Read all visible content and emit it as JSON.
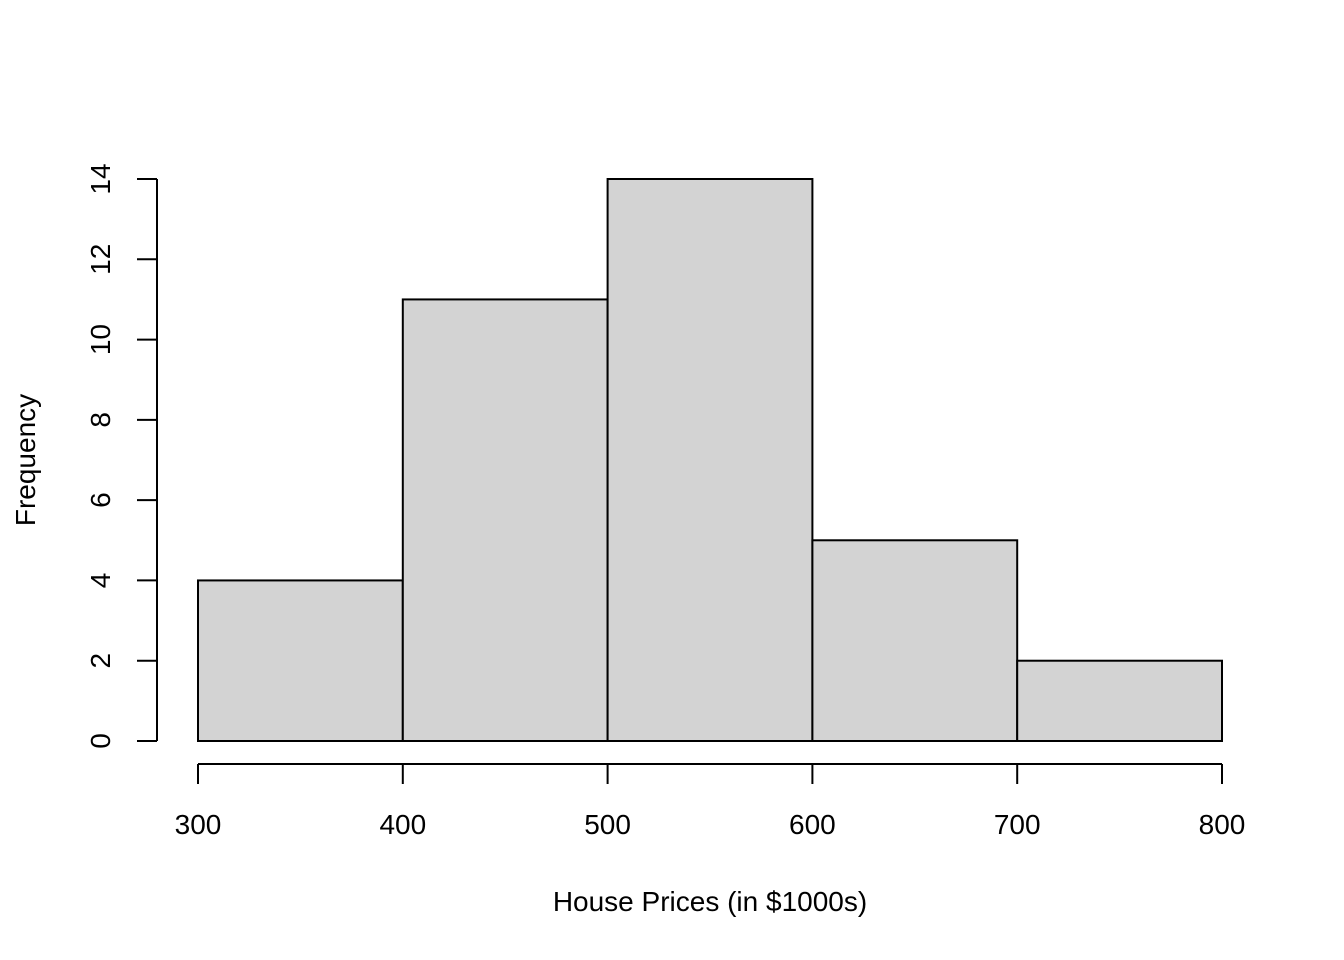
{
  "chart_data": {
    "type": "bar",
    "subtype": "histogram",
    "title": "",
    "xlabel": "House Prices (in $1000s)",
    "ylabel": "Frequency",
    "bins": [
      {
        "start": 300,
        "end": 400,
        "count": 4
      },
      {
        "start": 400,
        "end": 500,
        "count": 11
      },
      {
        "start": 500,
        "end": 600,
        "count": 14
      },
      {
        "start": 600,
        "end": 700,
        "count": 5
      },
      {
        "start": 700,
        "end": 800,
        "count": 2
      }
    ],
    "xlim": [
      300,
      800
    ],
    "ylim": [
      0,
      14
    ],
    "x_ticks": [
      "300",
      "400",
      "500",
      "600",
      "700",
      "800"
    ],
    "y_ticks": [
      "0",
      "2",
      "4",
      "6",
      "8",
      "10",
      "12",
      "14"
    ],
    "grid": false,
    "bar_fill": "#d3d3d3",
    "bar_stroke": "#000000"
  }
}
